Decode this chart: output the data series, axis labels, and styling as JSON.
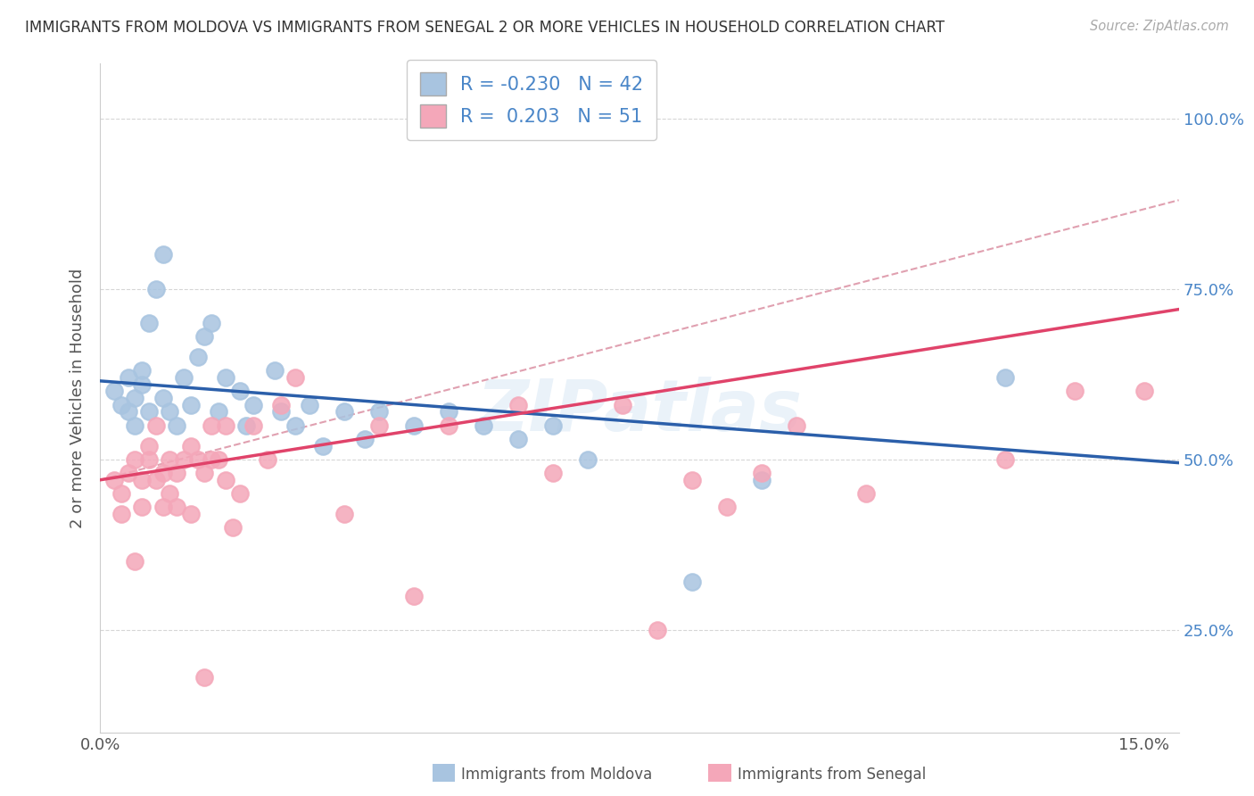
{
  "title": "IMMIGRANTS FROM MOLDOVA VS IMMIGRANTS FROM SENEGAL 2 OR MORE VEHICLES IN HOUSEHOLD CORRELATION CHART",
  "source": "Source: ZipAtlas.com",
  "ylabel": "2 or more Vehicles in Household",
  "xlim": [
    0.0,
    0.155
  ],
  "ylim": [
    0.1,
    1.08
  ],
  "xtick_positions": [
    0.0,
    0.03,
    0.06,
    0.09,
    0.12,
    0.15
  ],
  "xticklabels": [
    "0.0%",
    "",
    "",
    "",
    "",
    "15.0%"
  ],
  "ytick_positions": [
    0.25,
    0.5,
    0.75,
    1.0
  ],
  "yticklabels": [
    "25.0%",
    "50.0%",
    "75.0%",
    "100.0%"
  ],
  "moldova_color": "#a8c4e0",
  "senegal_color": "#f4a7b9",
  "moldova_line_color": "#2b5faa",
  "senegal_line_color": "#e0436a",
  "legend_R_moldova": "-0.230",
  "legend_N_moldova": "42",
  "legend_R_senegal": "0.203",
  "legend_N_senegal": "51",
  "moldova_label": "Immigrants from Moldova",
  "senegal_label": "Immigrants from Senegal",
  "moldova_x": [
    0.002,
    0.003,
    0.004,
    0.004,
    0.005,
    0.005,
    0.006,
    0.006,
    0.007,
    0.007,
    0.008,
    0.009,
    0.009,
    0.01,
    0.011,
    0.012,
    0.013,
    0.014,
    0.015,
    0.016,
    0.017,
    0.018,
    0.02,
    0.021,
    0.022,
    0.025,
    0.026,
    0.028,
    0.03,
    0.032,
    0.035,
    0.038,
    0.04,
    0.045,
    0.05,
    0.055,
    0.06,
    0.065,
    0.07,
    0.085,
    0.095,
    0.13
  ],
  "moldova_y": [
    0.6,
    0.58,
    0.62,
    0.57,
    0.55,
    0.59,
    0.61,
    0.63,
    0.57,
    0.7,
    0.75,
    0.8,
    0.59,
    0.57,
    0.55,
    0.62,
    0.58,
    0.65,
    0.68,
    0.7,
    0.57,
    0.62,
    0.6,
    0.55,
    0.58,
    0.63,
    0.57,
    0.55,
    0.58,
    0.52,
    0.57,
    0.53,
    0.57,
    0.55,
    0.57,
    0.55,
    0.53,
    0.55,
    0.5,
    0.32,
    0.47,
    0.62
  ],
  "senegal_x": [
    0.002,
    0.003,
    0.003,
    0.004,
    0.005,
    0.005,
    0.006,
    0.006,
    0.007,
    0.007,
    0.008,
    0.008,
    0.009,
    0.009,
    0.01,
    0.01,
    0.011,
    0.011,
    0.012,
    0.013,
    0.013,
    0.014,
    0.015,
    0.015,
    0.016,
    0.016,
    0.017,
    0.018,
    0.018,
    0.019,
    0.02,
    0.022,
    0.024,
    0.026,
    0.028,
    0.035,
    0.04,
    0.045,
    0.05,
    0.06,
    0.065,
    0.075,
    0.08,
    0.085,
    0.09,
    0.095,
    0.1,
    0.11,
    0.13,
    0.14,
    0.15
  ],
  "senegal_y": [
    0.47,
    0.45,
    0.42,
    0.48,
    0.5,
    0.35,
    0.47,
    0.43,
    0.5,
    0.52,
    0.55,
    0.47,
    0.48,
    0.43,
    0.5,
    0.45,
    0.48,
    0.43,
    0.5,
    0.52,
    0.42,
    0.5,
    0.48,
    0.18,
    0.5,
    0.55,
    0.5,
    0.55,
    0.47,
    0.4,
    0.45,
    0.55,
    0.5,
    0.58,
    0.62,
    0.42,
    0.55,
    0.3,
    0.55,
    0.58,
    0.48,
    0.58,
    0.25,
    0.47,
    0.43,
    0.48,
    0.55,
    0.45,
    0.5,
    0.6,
    0.6
  ],
  "dashed_line_color": "#e0a0b0",
  "dashed_line_x": [
    0.0,
    0.155
  ],
  "dashed_line_y": [
    0.47,
    0.88
  ]
}
